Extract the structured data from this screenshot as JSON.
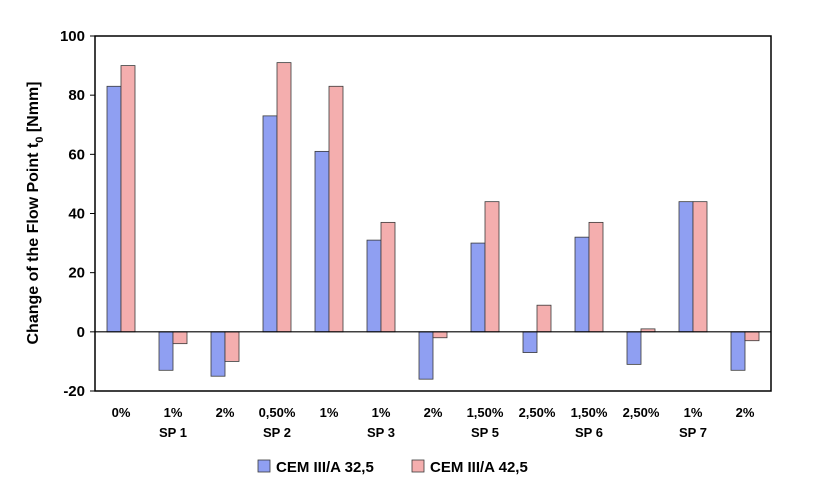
{
  "chart_data": {
    "type": "bar",
    "categories": [
      "0%",
      "1%",
      "2%",
      "0,50%",
      "1%",
      "1%",
      "2%",
      "1,50%",
      "2,50%",
      "1,50%",
      "2,50%",
      "1%",
      "2%"
    ],
    "group_labels": [
      "",
      "SP 1",
      "",
      "SP 2",
      "",
      "SP 3",
      "",
      "SP 5",
      "",
      "SP 6",
      "",
      "SP 7",
      ""
    ],
    "series": [
      {
        "name": "CEM III/A 32,5",
        "color": "#8f9ff2",
        "values": [
          83,
          -13,
          -15,
          73,
          61,
          31,
          -16,
          30,
          -7,
          32,
          -11,
          44,
          -13
        ]
      },
      {
        "name": "CEM III/A 42,5",
        "color": "#f4aeae",
        "values": [
          90,
          -4,
          -10,
          91,
          83,
          37,
          -2,
          44,
          9,
          37,
          1,
          44,
          -3
        ]
      }
    ],
    "ylabel_main": "Change of the Flow Point  t",
    "ylabel_sub": "0",
    "ylabel_unit": " [Nmm]",
    "ylim": [
      -20,
      100
    ],
    "yticks": [
      -20,
      0,
      20,
      40,
      60,
      80,
      100
    ],
    "grid": false,
    "legend": "bottom"
  }
}
